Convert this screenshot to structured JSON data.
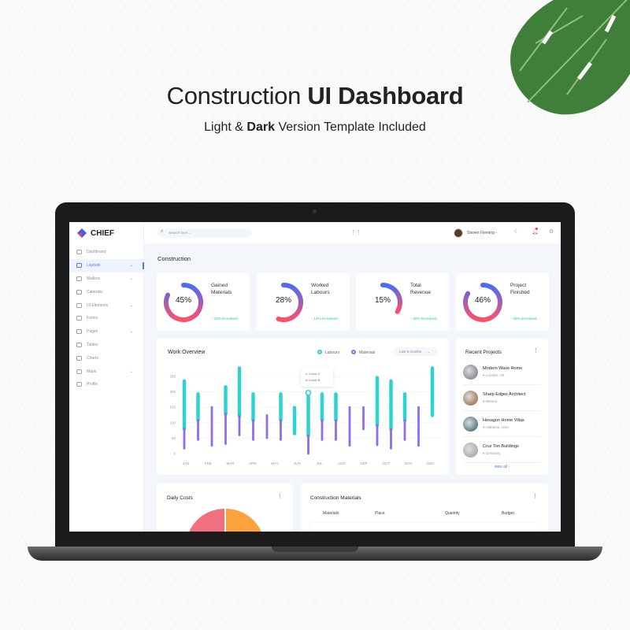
{
  "promo": {
    "title_light": "Construction",
    "title_bold": "UI Dashboard",
    "subtitle_pre": "Light & ",
    "subtitle_bold": "Dark",
    "subtitle_post": " Version Template Included"
  },
  "app": {
    "brand": "CHIEF",
    "search_placeholder": "Search here...",
    "user_name": "Steven Fleming",
    "page_title": "Construction"
  },
  "sidebar": {
    "items": [
      {
        "label": "Dashboard",
        "icon": "dashboard-icon",
        "chevron": false
      },
      {
        "label": "Layouts",
        "icon": "layout-icon",
        "chevron": true,
        "active": true
      },
      {
        "label": "Mailbox",
        "icon": "mail-icon",
        "chevron": true
      },
      {
        "label": "Calendar",
        "icon": "calendar-icon",
        "chevron": false
      },
      {
        "label": "UI Elements",
        "icon": "ui-elements-icon",
        "chevron": true
      },
      {
        "label": "Forms",
        "icon": "forms-icon",
        "chevron": false
      },
      {
        "label": "Pages",
        "icon": "pages-icon",
        "chevron": true
      },
      {
        "label": "Tables",
        "icon": "tables-icon",
        "chevron": false
      },
      {
        "label": "Charts",
        "icon": "charts-icon",
        "chevron": false
      },
      {
        "label": "Maps",
        "icon": "maps-icon",
        "chevron": true
      },
      {
        "label": "Profile",
        "icon": "profile-icon",
        "chevron": false
      }
    ]
  },
  "stats": [
    {
      "label1": "Gained",
      "label2": "Materials",
      "percent": 45,
      "percent_label": "45%",
      "increase": "23% Increased"
    },
    {
      "label1": "Worked",
      "label2": "Labours",
      "percent": 28,
      "percent_label": "28%",
      "increase": "14% Increased"
    },
    {
      "label1": "Total",
      "label2": "Revenue",
      "percent": 15,
      "percent_label": "15%",
      "increase": "20% Increased"
    },
    {
      "label1": "Project",
      "label2": "Finished",
      "percent": 46,
      "percent_label": "46%",
      "increase": "33% Increased"
    }
  ],
  "work_overview": {
    "title": "Work Overview",
    "legend": [
      "Labours",
      "Materials"
    ],
    "range_select": "Last 6 months",
    "tooltip": [
      "Grade A",
      "Grade B"
    ]
  },
  "chart_data": {
    "type": "bar",
    "subtype": "floating-range",
    "ylim": [
      0,
      280
    ],
    "yticks": [
      0,
      50,
      100,
      150,
      200,
      250
    ],
    "categories": [
      "JAN",
      "FEB",
      "MAR",
      "APR",
      "MAY",
      "JUN",
      "JUL",
      "AUG",
      "SEP",
      "OCT",
      "NOV",
      "DEC"
    ],
    "colors": {
      "Labours": "#2ed3d0",
      "Materials": "#8e6cf0"
    },
    "series": [
      {
        "name": "Labours",
        "ranges": [
          [
            80,
            235
          ],
          [
            108,
            193
          ],
          null,
          [
            128,
            216
          ],
          [
            122,
            277
          ],
          [
            108,
            193
          ],
          null,
          [
            108,
            193
          ],
          [
            65,
            149
          ],
          [
            58,
            197
          ],
          [
            108,
            193
          ],
          [
            108,
            193
          ],
          null,
          null,
          [
            92,
            246
          ],
          [
            79,
            235
          ],
          [
            108,
            193
          ],
          null,
          [
            124,
            277
          ]
        ]
      },
      {
        "name": "Materials",
        "ranges": [
          [
            17,
            80
          ],
          [
            45,
            108
          ],
          [
            26,
            150
          ],
          [
            32,
            128
          ],
          [
            60,
            122
          ],
          [
            45,
            108
          ],
          [
            51,
            124
          ],
          [
            45,
            108
          ],
          null,
          [
            0,
            58
          ],
          [
            45,
            108
          ],
          [
            45,
            108
          ],
          [
            26,
            150
          ],
          [
            79,
            150
          ],
          [
            28,
            92
          ],
          [
            17,
            79
          ],
          [
            45,
            108
          ],
          [
            26,
            150
          ],
          null
        ]
      }
    ]
  },
  "recent_projects": {
    "title": "Recent Projects",
    "view_all": "view all ›",
    "items": [
      {
        "name": "Modern Wave Home",
        "location": "London, UK",
        "color": "#6b6f78"
      },
      {
        "name": "Sharp Edges Architect",
        "location": "Mexico",
        "color": "#8a5a2b"
      },
      {
        "name": "Hexagon Home Villas",
        "location": "Alabama, USA",
        "color": "#2d5560"
      },
      {
        "name": "Cruz Ton Buildings",
        "location": "Germany",
        "color": "#9a9a9a"
      }
    ]
  },
  "daily_costs": {
    "title": "Daily Costs",
    "colors": [
      "#f0707f",
      "#fba23b"
    ]
  },
  "materials_table": {
    "title": "Construction Materials",
    "columns": [
      "Materials",
      "Place",
      "Quantity",
      "Budget"
    ]
  }
}
